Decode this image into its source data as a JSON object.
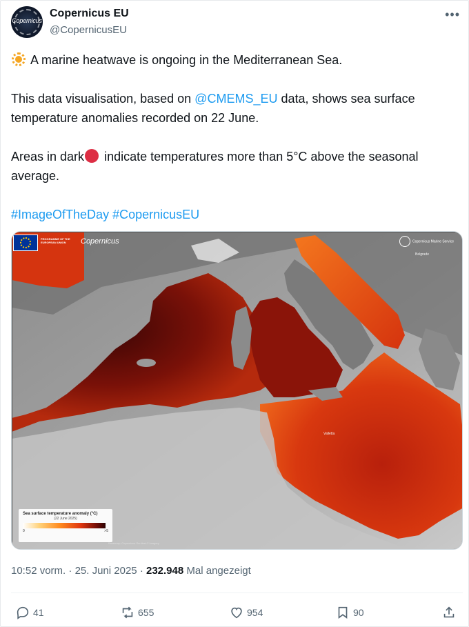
{
  "account": {
    "name": "Copernicus EU",
    "handle": "@CopernicusEU",
    "avatar_text": "Copernicus"
  },
  "menu": {
    "more_label": "•••"
  },
  "tweet": {
    "line1": "A marine heatwave is ongoing in the Mediterranean Sea.",
    "line2_before": "This data visualisation, based on ",
    "line2_mention": "@CMEMS_EU",
    "line2_after": " data, shows sea surface temperature anomalies recorded on 22 June.",
    "line3_before": "Areas in dark",
    "line3_after": " indicate temperatures more than 5°C above the seasonal average.",
    "hashtag1": "#ImageOfTheDay",
    "hashtag2": "#CopernicusEU"
  },
  "media": {
    "eu_label": "PROGRAMME OF THE EUROPEAN UNION",
    "copernicus_logo": "Copernicus",
    "cms_logo": "Copernicus Marine Service",
    "legend_title": "Sea surface temperature anomaly (°C)",
    "legend_date": "(22 June 2025)",
    "legend_min": "0",
    "legend_max": ">5",
    "basemap_note": "Basemap: Copernicus Sentinel-2 imagery",
    "cities": {
      "valletta": "Valletta",
      "belgrade": "Belgrade"
    }
  },
  "meta": {
    "time": "10:52 vorm.",
    "sep": "·",
    "date": "25. Juni 2025",
    "views": "232.948",
    "views_label": "Mal angezeigt"
  },
  "actions": {
    "replies": "41",
    "reposts": "655",
    "likes": "954",
    "bookmarks": "90"
  },
  "colors": {
    "link": "#1d9bf0",
    "text": "#0f1419",
    "secondary": "#536471",
    "red_dot": "#dd2e44"
  }
}
